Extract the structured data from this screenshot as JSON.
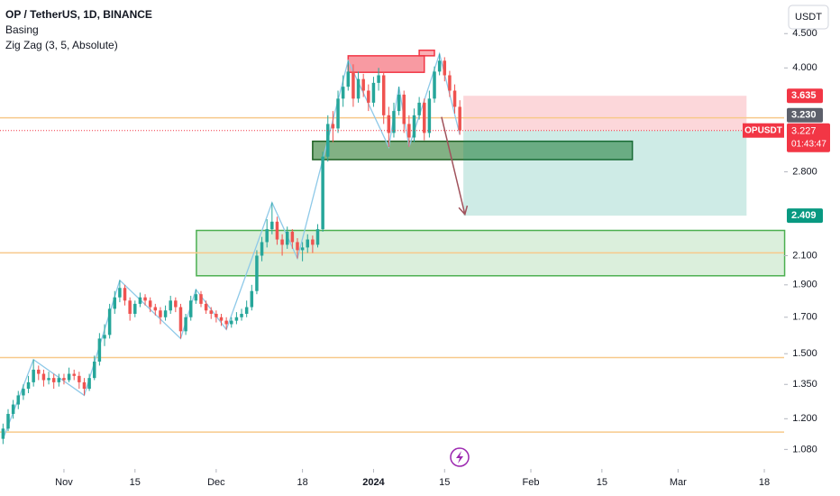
{
  "chart_data": {
    "type": "candlestick",
    "title": "OP / TetherUS, 1D, BINANCE",
    "indicators": [
      "Basing",
      "Zig Zag (3, 5, Absolute)"
    ],
    "currency": "USDT",
    "log": true,
    "grid": false,
    "up_color": "#26a69a",
    "down_color": "#ef5350",
    "xlim": [
      -0.6,
      153.9
    ],
    "ylim": [
      1.01,
      5.05
    ],
    "xticks": [
      {
        "value": 12,
        "label": "Nov"
      },
      {
        "value": 26,
        "label": "15"
      },
      {
        "value": 42,
        "label": "Dec"
      },
      {
        "value": 59,
        "label": "18"
      },
      {
        "value": 73,
        "label": "2024"
      },
      {
        "value": 87,
        "label": "15"
      },
      {
        "value": 104,
        "label": "Feb"
      },
      {
        "value": 118,
        "label": "15"
      },
      {
        "value": 133,
        "label": "Mar"
      },
      {
        "value": 150,
        "label": "18"
      }
    ],
    "yticks": [
      {
        "value": 4.5,
        "label": "4.500"
      },
      {
        "value": 4.0,
        "label": "4.000"
      },
      {
        "value": 2.8,
        "label": "2.800"
      },
      {
        "value": 2.1,
        "label": "2.100"
      },
      {
        "value": 1.9,
        "label": "1.900"
      },
      {
        "value": 1.7,
        "label": "1.700"
      },
      {
        "value": 1.5,
        "label": "1.500"
      },
      {
        "value": 1.35,
        "label": "1.350"
      },
      {
        "value": 1.2,
        "label": "1.200"
      },
      {
        "value": 1.08,
        "label": "1.080"
      }
    ],
    "ohlc": [
      [
        1.12,
        1.18,
        1.1,
        1.16
      ],
      [
        1.16,
        1.24,
        1.15,
        1.22
      ],
      [
        1.22,
        1.28,
        1.2,
        1.26
      ],
      [
        1.26,
        1.32,
        1.24,
        1.3
      ],
      [
        1.3,
        1.35,
        1.28,
        1.33
      ],
      [
        1.33,
        1.39,
        1.31,
        1.36
      ],
      [
        1.36,
        1.47,
        1.34,
        1.42
      ],
      [
        1.42,
        1.44,
        1.37,
        1.4
      ],
      [
        1.4,
        1.42,
        1.34,
        1.37
      ],
      [
        1.37,
        1.41,
        1.35,
        1.38
      ],
      [
        1.38,
        1.4,
        1.33,
        1.36
      ],
      [
        1.36,
        1.4,
        1.34,
        1.38
      ],
      [
        1.38,
        1.4,
        1.35,
        1.37
      ],
      [
        1.37,
        1.43,
        1.36,
        1.4
      ],
      [
        1.4,
        1.42,
        1.37,
        1.39
      ],
      [
        1.39,
        1.41,
        1.33,
        1.36
      ],
      [
        1.36,
        1.38,
        1.3,
        1.33
      ],
      [
        1.33,
        1.4,
        1.32,
        1.38
      ],
      [
        1.38,
        1.49,
        1.37,
        1.46
      ],
      [
        1.46,
        1.61,
        1.44,
        1.58
      ],
      [
        1.58,
        1.66,
        1.54,
        1.6
      ],
      [
        1.6,
        1.78,
        1.58,
        1.75
      ],
      [
        1.75,
        1.86,
        1.72,
        1.82
      ],
      [
        1.82,
        1.93,
        1.79,
        1.88
      ],
      [
        1.88,
        1.9,
        1.77,
        1.8
      ],
      [
        1.8,
        1.82,
        1.68,
        1.72
      ],
      [
        1.72,
        1.8,
        1.7,
        1.78
      ],
      [
        1.78,
        1.85,
        1.76,
        1.82
      ],
      [
        1.82,
        1.84,
        1.77,
        1.8
      ],
      [
        1.8,
        1.82,
        1.73,
        1.76
      ],
      [
        1.76,
        1.78,
        1.71,
        1.74
      ],
      [
        1.74,
        1.76,
        1.66,
        1.7
      ],
      [
        1.7,
        1.77,
        1.68,
        1.74
      ],
      [
        1.74,
        1.83,
        1.72,
        1.8
      ],
      [
        1.8,
        1.82,
        1.73,
        1.76
      ],
      [
        1.76,
        1.78,
        1.58,
        1.62
      ],
      [
        1.62,
        1.72,
        1.6,
        1.7
      ],
      [
        1.7,
        1.83,
        1.68,
        1.8
      ],
      [
        1.8,
        1.87,
        1.78,
        1.84
      ],
      [
        1.84,
        1.86,
        1.76,
        1.78
      ],
      [
        1.78,
        1.8,
        1.72,
        1.74
      ],
      [
        1.74,
        1.76,
        1.69,
        1.72
      ],
      [
        1.72,
        1.74,
        1.67,
        1.7
      ],
      [
        1.7,
        1.72,
        1.65,
        1.68
      ],
      [
        1.68,
        1.7,
        1.63,
        1.66
      ],
      [
        1.66,
        1.7,
        1.64,
        1.68
      ],
      [
        1.68,
        1.73,
        1.66,
        1.7
      ],
      [
        1.7,
        1.75,
        1.68,
        1.72
      ],
      [
        1.72,
        1.8,
        1.7,
        1.76
      ],
      [
        1.76,
        1.9,
        1.74,
        1.86
      ],
      [
        1.86,
        2.14,
        1.84,
        2.1
      ],
      [
        2.1,
        2.24,
        2.06,
        2.2
      ],
      [
        2.2,
        2.38,
        2.16,
        2.3
      ],
      [
        2.3,
        2.52,
        2.26,
        2.36
      ],
      [
        2.36,
        2.4,
        2.18,
        2.22
      ],
      [
        2.22,
        2.26,
        2.1,
        2.18
      ],
      [
        2.18,
        2.32,
        2.15,
        2.28
      ],
      [
        2.28,
        2.3,
        2.15,
        2.2
      ],
      [
        2.2,
        2.23,
        2.08,
        2.14
      ],
      [
        2.14,
        2.2,
        2.06,
        2.16
      ],
      [
        2.16,
        2.26,
        2.12,
        2.22
      ],
      [
        2.22,
        2.25,
        2.12,
        2.18
      ],
      [
        2.18,
        2.34,
        2.16,
        2.3
      ],
      [
        2.3,
        3.0,
        2.28,
        2.95
      ],
      [
        2.95,
        3.4,
        2.9,
        3.3
      ],
      [
        3.3,
        3.45,
        3.1,
        3.25
      ],
      [
        3.25,
        3.7,
        3.2,
        3.6
      ],
      [
        3.6,
        3.9,
        3.5,
        3.75
      ],
      [
        3.75,
        4.1,
        3.7,
        3.95
      ],
      [
        3.95,
        4.05,
        3.5,
        3.6
      ],
      [
        3.6,
        3.95,
        3.55,
        3.85
      ],
      [
        3.85,
        3.92,
        3.62,
        3.7
      ],
      [
        3.7,
        3.78,
        3.45,
        3.55
      ],
      [
        3.55,
        3.88,
        3.5,
        3.8
      ],
      [
        3.8,
        4.0,
        3.7,
        3.9
      ],
      [
        3.9,
        3.95,
        3.3,
        3.4
      ],
      [
        3.4,
        3.5,
        3.05,
        3.2
      ],
      [
        3.2,
        3.55,
        3.15,
        3.45
      ],
      [
        3.45,
        3.75,
        3.4,
        3.65
      ],
      [
        3.65,
        3.7,
        3.2,
        3.3
      ],
      [
        3.3,
        3.4,
        3.05,
        3.15
      ],
      [
        3.15,
        3.48,
        3.1,
        3.4
      ],
      [
        3.4,
        3.62,
        3.35,
        3.55
      ],
      [
        3.55,
        3.6,
        3.12,
        3.2
      ],
      [
        3.2,
        3.7,
        3.15,
        3.6
      ],
      [
        3.6,
        4.02,
        3.55,
        3.95
      ],
      [
        3.95,
        4.2,
        3.9,
        4.1
      ],
      [
        4.1,
        4.15,
        3.82,
        3.9
      ],
      [
        3.9,
        3.96,
        3.62,
        3.7
      ],
      [
        3.7,
        3.78,
        3.42,
        3.5
      ],
      [
        3.5,
        3.58,
        3.18,
        3.227
      ]
    ],
    "zigzag": {
      "color": "#8ec9e8",
      "x": [
        0,
        6,
        16,
        23,
        35,
        38,
        44,
        53,
        58,
        68,
        76,
        78,
        80,
        86,
        90
      ],
      "y": [
        1.12,
        1.47,
        1.3,
        1.93,
        1.58,
        1.87,
        1.63,
        2.52,
        2.08,
        4.1,
        3.05,
        3.75,
        3.05,
        4.2,
        3.18
      ]
    },
    "hlines": {
      "color": "#f7c98b",
      "values": [
        3.37,
        2.12,
        1.48,
        1.146
      ]
    },
    "zones": [
      {
        "x": [
          38.1,
          154
        ],
        "y": [
          2.29,
          1.96
        ],
        "fill": "rgba(76,175,80,0.2)",
        "stroke": "#4caf50"
      },
      {
        "x": [
          61,
          124
        ],
        "y": [
          3.11,
          2.92
        ],
        "fill": "rgba(46,125,50,0.6)",
        "stroke": "#1b5e20"
      },
      {
        "x": [
          68,
          83
        ],
        "y": [
          4.17,
          3.94
        ],
        "fill": "rgba(242,54,69,0.5)",
        "stroke": "#f23645"
      },
      {
        "x": [
          82,
          85
        ],
        "y": [
          4.25,
          4.17
        ],
        "fill": "rgba(242,54,69,0.4)",
        "stroke": "#f23645"
      },
      {
        "x": [
          90.7,
          146.5
        ],
        "y": [
          3.635,
          3.227
        ],
        "fill": "rgba(242,54,69,0.2)",
        "stroke": "none"
      },
      {
        "x": [
          90.7,
          146.5
        ],
        "y": [
          3.227,
          2.409
        ],
        "fill": "rgba(8,153,129,0.2)",
        "stroke": "none"
      }
    ],
    "arrow": {
      "x": [
        86.4,
        91
      ],
      "y": [
        3.38,
        2.42
      ],
      "color": "#a0525c"
    },
    "current_price": {
      "value": 3.227,
      "label": "3.227",
      "symbol": "OPUSDT",
      "countdown": "01:43:47",
      "color": "#f23645"
    },
    "price_labels": [
      {
        "value": 3.635,
        "label": "3.635",
        "color": "#f23645"
      },
      {
        "value": 3.23,
        "label": "3.230",
        "color": "#5d606b"
      },
      {
        "value": 2.409,
        "label": "2.409",
        "color": "#089981"
      }
    ]
  }
}
